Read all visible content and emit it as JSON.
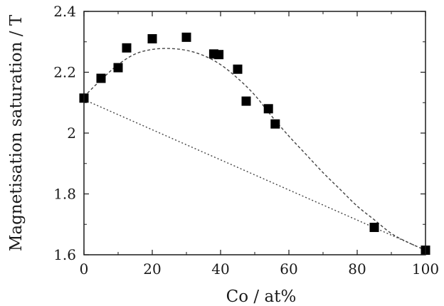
{
  "chart_data": {
    "type": "scatter",
    "title": "",
    "xlabel": "Co / at%",
    "ylabel": "Magnetisation saturation / T",
    "xlim": [
      0,
      100
    ],
    "ylim": [
      1.6,
      2.4
    ],
    "x_ticks": [
      0,
      20,
      40,
      60,
      80,
      100
    ],
    "x_tick_labels": [
      "0",
      "20",
      "40",
      "60",
      "80",
      "100"
    ],
    "y_ticks": [
      1.6,
      1.8,
      2.0,
      2.2,
      2.4
    ],
    "y_tick_labels": [
      "1.6",
      "1.8",
      "2",
      "2.2",
      "2.4"
    ],
    "grid": false,
    "legend": "none",
    "series": [
      {
        "kind": "markers",
        "marker": "square",
        "color": "#000000",
        "x": [
          0,
          5,
          10,
          12.5,
          20,
          30,
          38,
          39.5,
          45,
          47.5,
          54,
          56,
          85,
          100
        ],
        "y": [
          2.115,
          2.18,
          2.215,
          2.28,
          2.31,
          2.315,
          2.26,
          2.258,
          2.21,
          2.105,
          2.08,
          2.03,
          1.69,
          1.615
        ]
      },
      {
        "kind": "curve",
        "style": "dashed",
        "color": "#444444",
        "x": [
          0,
          5,
          10,
          15,
          20,
          25,
          30,
          35,
          40,
          45,
          50,
          55,
          60,
          65,
          70,
          75,
          80,
          85,
          90,
          95,
          100
        ],
        "y": [
          2.12,
          2.175,
          2.225,
          2.26,
          2.275,
          2.278,
          2.272,
          2.255,
          2.225,
          2.18,
          2.125,
          2.055,
          1.99,
          1.93,
          1.87,
          1.815,
          1.76,
          1.715,
          1.67,
          1.64,
          1.615
        ]
      },
      {
        "kind": "line",
        "style": "dotted",
        "color": "#444444",
        "x": [
          0,
          100
        ],
        "y": [
          2.11,
          1.615
        ]
      }
    ]
  }
}
